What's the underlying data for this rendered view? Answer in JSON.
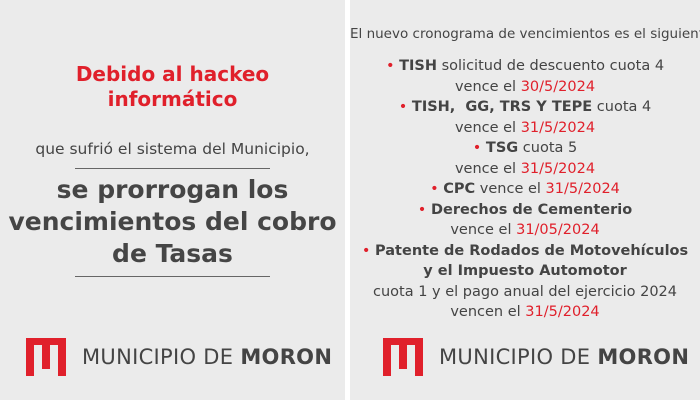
{
  "left": {
    "headline": [
      "Debido al hackeo",
      "informático"
    ],
    "subtitle": "que sufrió el sistema del Municipio,",
    "main": [
      "se prorrogan los",
      "vencimientos del cobro",
      "de Tasas"
    ]
  },
  "right": {
    "intro": "El nuevo cronograma de vencimientos es el siguiente:",
    "items": [
      {
        "name": "TISH",
        "detail": "solicitud de descuento cuota 4",
        "due": "vence el",
        "date": "30/5/2024"
      },
      {
        "name": "TISH,  GG, TRS Y TEPE",
        "detail": "cuota 4",
        "due": "vence el",
        "date": "31/5/2024"
      },
      {
        "name": "TSG",
        "detail": "cuota 5",
        "due": "vence el",
        "date": "31/5/2024"
      },
      {
        "name": "CPC",
        "due": "vence el",
        "date": "31/5/2024"
      },
      {
        "name": "Derechos de Cementerio",
        "due": "vence el",
        "date": "31/05/2024"
      },
      {
        "name": [
          "Patente de Rodados de Motovehículos",
          "y el Impuesto Automotor"
        ],
        "detail": "cuota 1 y el pago anual del ejercicio 2024",
        "due": "vencen el",
        "date": "31/5/2024"
      }
    ]
  },
  "logo": {
    "prefix": "MUNICIPIO DE",
    "name": "MORON"
  }
}
